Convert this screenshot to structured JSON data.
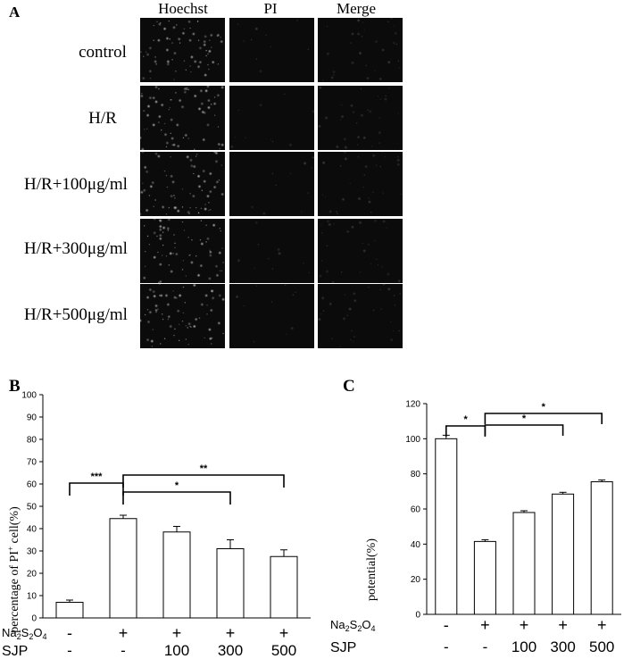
{
  "panelA": {
    "letter": "A",
    "columns": [
      "Hoechst",
      "PI",
      "Merge"
    ],
    "rows": [
      "control",
      "H/R",
      "H/R+100μg/ml",
      "H/R+300μg/ml",
      "H/R+500μg/ml"
    ]
  },
  "chart_data": [
    {
      "panel": "B",
      "type": "bar",
      "ylabel": "percentage of PI+ cell(%)",
      "ylabel_main": "percentage of PI",
      "ylabel_sup": "+",
      "ylabel_end": " cell(%)",
      "ylim": [
        0,
        100
      ],
      "yticks": [
        0,
        10,
        20,
        30,
        40,
        50,
        60,
        70,
        80,
        90,
        100
      ],
      "values": [
        7,
        44.5,
        38.5,
        31,
        27.5
      ],
      "errors": [
        1,
        1.5,
        2.5,
        4,
        3
      ],
      "conditions": {
        "row1_label": "Na2S2O4",
        "row1": [
          "-",
          "+",
          "+",
          "+",
          "+"
        ],
        "row2_label": "SJP",
        "row2": [
          "-",
          "-",
          "100",
          "300",
          "500"
        ]
      },
      "significance": [
        {
          "from": 0,
          "to": 1,
          "label": "***"
        },
        {
          "from": 1,
          "to": 3,
          "label": "*"
        },
        {
          "from": 1,
          "to": 4,
          "label": "**"
        }
      ]
    },
    {
      "panel": "C",
      "type": "bar",
      "ylabel": "potential(%)",
      "ylim": [
        0,
        120
      ],
      "yticks": [
        0,
        20,
        40,
        60,
        80,
        100,
        120
      ],
      "values": [
        100,
        41.5,
        58,
        68.5,
        75.5
      ],
      "errors": [
        2,
        1,
        1,
        1,
        1
      ],
      "conditions": {
        "row1_label": "Na2S2O4",
        "row1": [
          "-",
          "+",
          "+",
          "+",
          "+"
        ],
        "row2_label": "SJP",
        "row2": [
          "-",
          "-",
          "100",
          "300",
          "500"
        ]
      },
      "significance": [
        {
          "from": 0,
          "to": 1,
          "label": "*"
        },
        {
          "from": 1,
          "to": 3,
          "label": "*"
        },
        {
          "from": 1,
          "to": 4,
          "label": "*"
        }
      ]
    }
  ],
  "labels": {
    "panelB": "B",
    "panelC": "C"
  }
}
